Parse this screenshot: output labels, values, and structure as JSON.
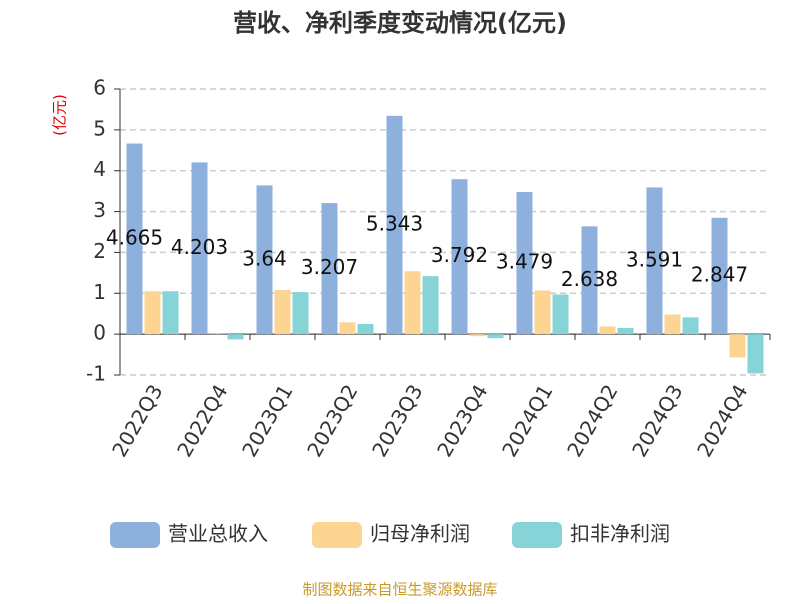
{
  "chart_data": {
    "type": "bar",
    "title": "营收、净利季度变动情况(亿元)",
    "y_label": "(亿元)",
    "source": "制图数据来自恒生聚源数据库",
    "categories": [
      "2022Q3",
      "2022Q4",
      "2023Q1",
      "2023Q2",
      "2023Q3",
      "2023Q4",
      "2024Q1",
      "2024Q2",
      "2024Q3",
      "2024Q4"
    ],
    "series": [
      {
        "name": "营业总收入",
        "color": "#8eb0dc",
        "values": [
          4.665,
          4.203,
          3.64,
          3.207,
          5.343,
          3.792,
          3.479,
          2.638,
          3.591,
          2.847
        ]
      },
      {
        "name": "归母净利润",
        "color": "#fdd593",
        "values": [
          1.05,
          0.01,
          1.08,
          0.29,
          1.54,
          -0.05,
          1.07,
          0.19,
          0.48,
          -0.57
        ]
      },
      {
        "name": "扣非净利润",
        "color": "#86d4d8",
        "values": [
          1.05,
          -0.13,
          1.03,
          0.25,
          1.42,
          -0.1,
          0.97,
          0.15,
          0.41,
          -0.96
        ]
      }
    ],
    "ylim": [
      -1,
      6
    ],
    "yticks": [
      -1,
      0,
      1,
      2,
      3,
      4,
      5,
      6
    ],
    "grid": true,
    "legend": "bottom"
  }
}
